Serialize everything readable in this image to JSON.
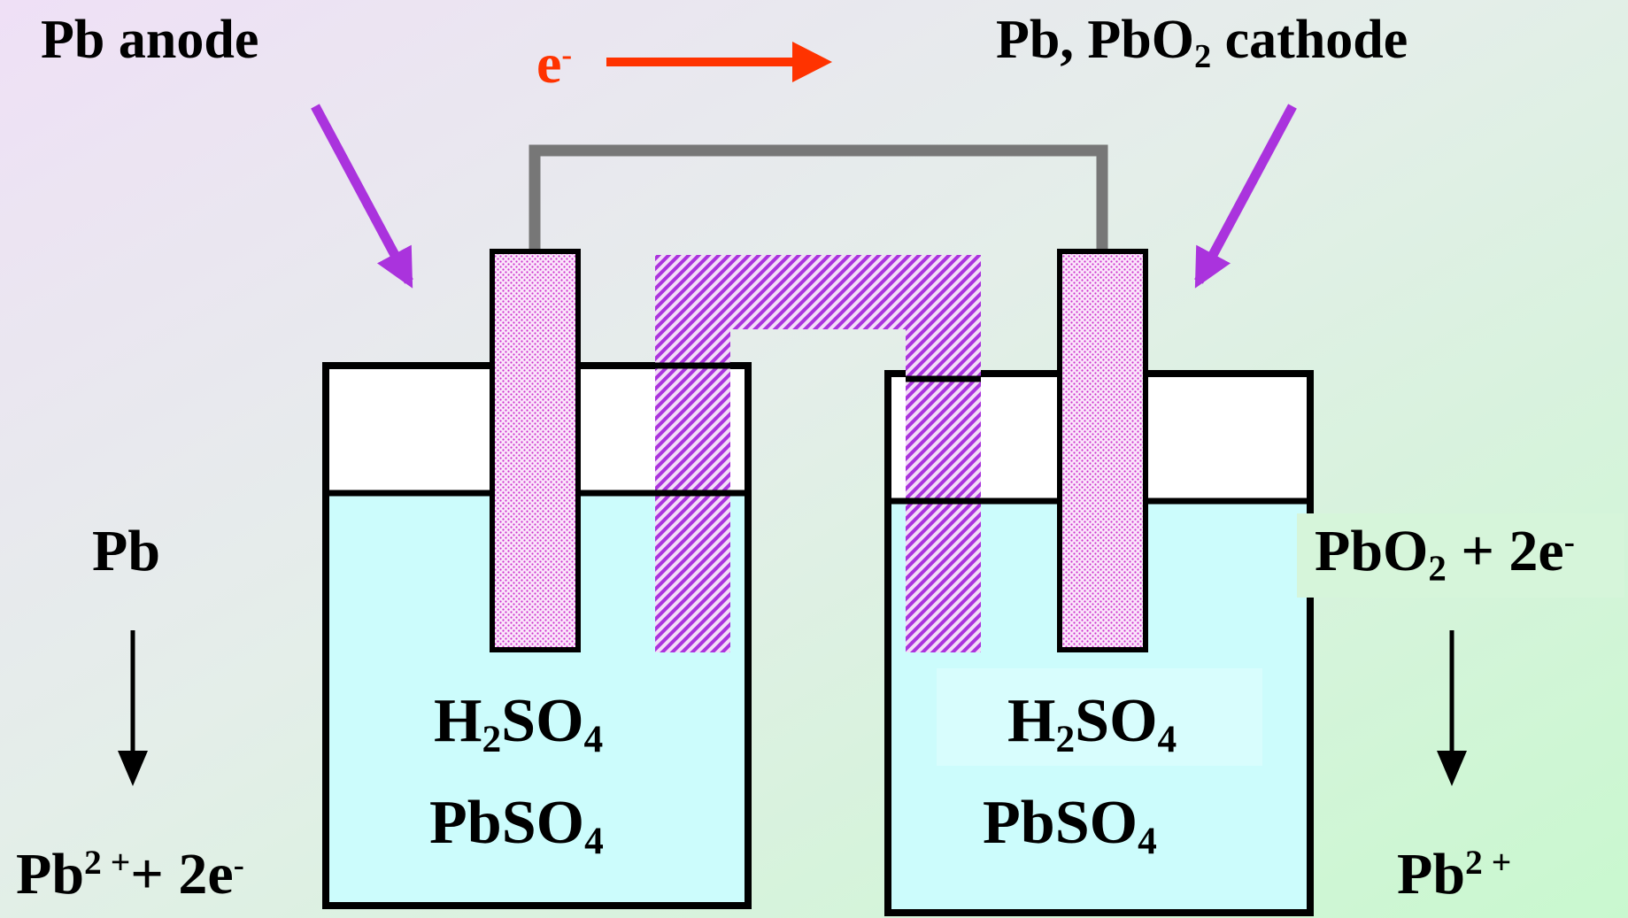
{
  "labels": {
    "anode": "Pb  anode",
    "cathode_a": "Pb, PbO",
    "cathode_sub": "2",
    "cathode_b": " cathode",
    "electron": "e",
    "electron_sup": "-",
    "left_top": "Pb",
    "left_bottom_a": "Pb",
    "left_bottom_sup": "2 +",
    "left_bottom_b": "+  2e",
    "left_bottom_sup2": "-",
    "right_top_a": "PbO",
    "right_top_sub": "2",
    "right_top_b": " + 2e",
    "right_top_sup": "-",
    "right_bottom_a": "Pb",
    "right_bottom_sup": "2 +"
  },
  "left_cell": {
    "acid_a": "H",
    "acid_sub1": "2",
    "acid_b": "SO",
    "acid_sub2": "4",
    "salt_a": "PbSO",
    "salt_sub": "4"
  },
  "right_cell": {
    "acid_a": "H",
    "acid_sub1": "2",
    "acid_b": "SO",
    "acid_sub2": "4",
    "salt_a": "PbSO",
    "salt_sub": "4"
  },
  "colors": {
    "arrow_purple": "#aa33dd",
    "electron_red": "#ff3300",
    "electrolyte": "#ccfcfc",
    "wire": "#777777",
    "bridge_hatch": "#aa33dd",
    "electrode_dots": "#cc33cc"
  },
  "icons": [
    "pointer-arrow",
    "electron-flow-arrow",
    "reaction-arrow"
  ]
}
